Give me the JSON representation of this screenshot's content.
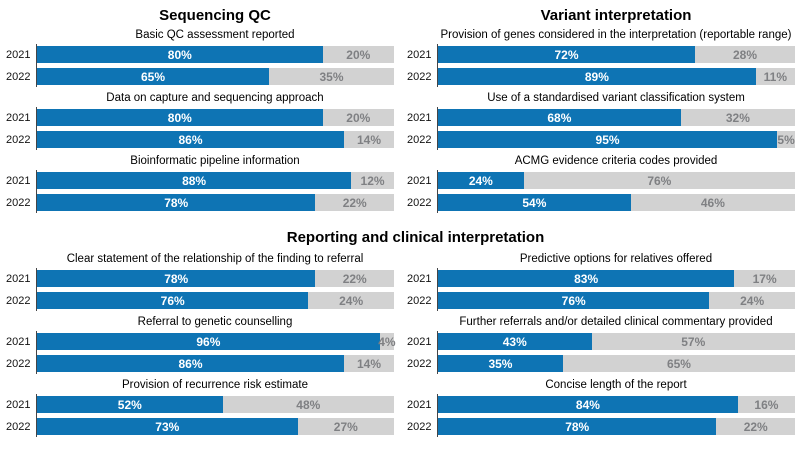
{
  "figure": {
    "section_titles": {
      "left": "Sequencing QC",
      "right": "Variant interpretation",
      "bottom": "Reporting and clinical interpretation"
    }
  },
  "colors": {
    "bar_fill": "#0e74b4",
    "bar_remainder": "#d2d2d2",
    "value_label": "#ffffff",
    "remainder_label": "#7f8083"
  },
  "chart_data": {
    "type": "bar",
    "subtype": "horizontal-stacked-100-percent",
    "unit": "%",
    "x_range": [
      0,
      100
    ],
    "categories_per_panel": [
      "2021",
      "2022"
    ],
    "panels": [
      {
        "section": "Sequencing QC",
        "title": "Basic QC assessment reported",
        "rows": [
          {
            "year": "2021",
            "value": 80,
            "remainder": 20,
            "value_label": "80%",
            "remainder_label": "20%"
          },
          {
            "year": "2022",
            "value": 65,
            "remainder": 35,
            "value_label": "65%",
            "remainder_label": "35%"
          }
        ]
      },
      {
        "section": "Sequencing QC",
        "title": "Data on capture and sequencing approach",
        "rows": [
          {
            "year": "2021",
            "value": 80,
            "remainder": 20,
            "value_label": "80%",
            "remainder_label": "20%"
          },
          {
            "year": "2022",
            "value": 86,
            "remainder": 14,
            "value_label": "86%",
            "remainder_label": "14%"
          }
        ]
      },
      {
        "section": "Sequencing QC",
        "title": "Bioinformatic pipeline information",
        "rows": [
          {
            "year": "2021",
            "value": 88,
            "remainder": 12,
            "value_label": "88%",
            "remainder_label": "12%"
          },
          {
            "year": "2022",
            "value": 78,
            "remainder": 22,
            "value_label": "78%",
            "remainder_label": "22%"
          }
        ]
      },
      {
        "section": "Variant interpretation",
        "title": "Provision of genes considered in the interpretation (reportable range)",
        "rows": [
          {
            "year": "2021",
            "value": 72,
            "remainder": 28,
            "value_label": "72%",
            "remainder_label": "28%"
          },
          {
            "year": "2022",
            "value": 89,
            "remainder": 11,
            "value_label": "89%",
            "remainder_label": "11%"
          }
        ]
      },
      {
        "section": "Variant interpretation",
        "title": "Use of a standardised variant classification system",
        "rows": [
          {
            "year": "2021",
            "value": 68,
            "remainder": 32,
            "value_label": "68%",
            "remainder_label": "32%"
          },
          {
            "year": "2022",
            "value": 95,
            "remainder": 5,
            "value_label": "95%",
            "remainder_label": "5%"
          }
        ]
      },
      {
        "section": "Variant interpretation",
        "title": "ACMG evidence criteria codes provided",
        "rows": [
          {
            "year": "2021",
            "value": 24,
            "remainder": 76,
            "value_label": "24%",
            "remainder_label": "76%"
          },
          {
            "year": "2022",
            "value": 54,
            "remainder": 46,
            "value_label": "54%",
            "remainder_label": "46%"
          }
        ]
      },
      {
        "section": "Reporting and clinical interpretation",
        "title": "Clear statement of the relationship of the finding to referral",
        "rows": [
          {
            "year": "2021",
            "value": 78,
            "remainder": 22,
            "value_label": "78%",
            "remainder_label": "22%"
          },
          {
            "year": "2022",
            "value": 76,
            "remainder": 24,
            "value_label": "76%",
            "remainder_label": "24%"
          }
        ]
      },
      {
        "section": "Reporting and clinical interpretation",
        "title": "Referral to genetic counselling",
        "rows": [
          {
            "year": "2021",
            "value": 96,
            "remainder": 4,
            "value_label": "96%",
            "remainder_label": "4%"
          },
          {
            "year": "2022",
            "value": 86,
            "remainder": 14,
            "value_label": "86%",
            "remainder_label": "14%"
          }
        ]
      },
      {
        "section": "Reporting and clinical interpretation",
        "title": "Provision of recurrence risk estimate",
        "rows": [
          {
            "year": "2021",
            "value": 52,
            "remainder": 48,
            "value_label": "52%",
            "remainder_label": "48%"
          },
          {
            "year": "2022",
            "value": 73,
            "remainder": 27,
            "value_label": "73%",
            "remainder_label": "27%"
          }
        ]
      },
      {
        "section": "Reporting and clinical interpretation",
        "title": "Predictive options for relatives offered",
        "rows": [
          {
            "year": "2021",
            "value": 83,
            "remainder": 17,
            "value_label": "83%",
            "remainder_label": "17%"
          },
          {
            "year": "2022",
            "value": 76,
            "remainder": 24,
            "value_label": "76%",
            "remainder_label": "24%"
          }
        ]
      },
      {
        "section": "Reporting and clinical interpretation",
        "title": "Further referrals and/or detailed clinical commentary provided",
        "rows": [
          {
            "year": "2021",
            "value": 43,
            "remainder": 57,
            "value_label": "43%",
            "remainder_label": "57%"
          },
          {
            "year": "2022",
            "value": 35,
            "remainder": 65,
            "value_label": "35%",
            "remainder_label": "65%"
          }
        ]
      },
      {
        "section": "Reporting and clinical interpretation",
        "title": "Concise length of the report",
        "rows": [
          {
            "year": "2021",
            "value": 84,
            "remainder": 16,
            "value_label": "84%",
            "remainder_label": "16%"
          },
          {
            "year": "2022",
            "value": 78,
            "remainder": 22,
            "value_label": "78%",
            "remainder_label": "22%"
          }
        ]
      }
    ]
  }
}
